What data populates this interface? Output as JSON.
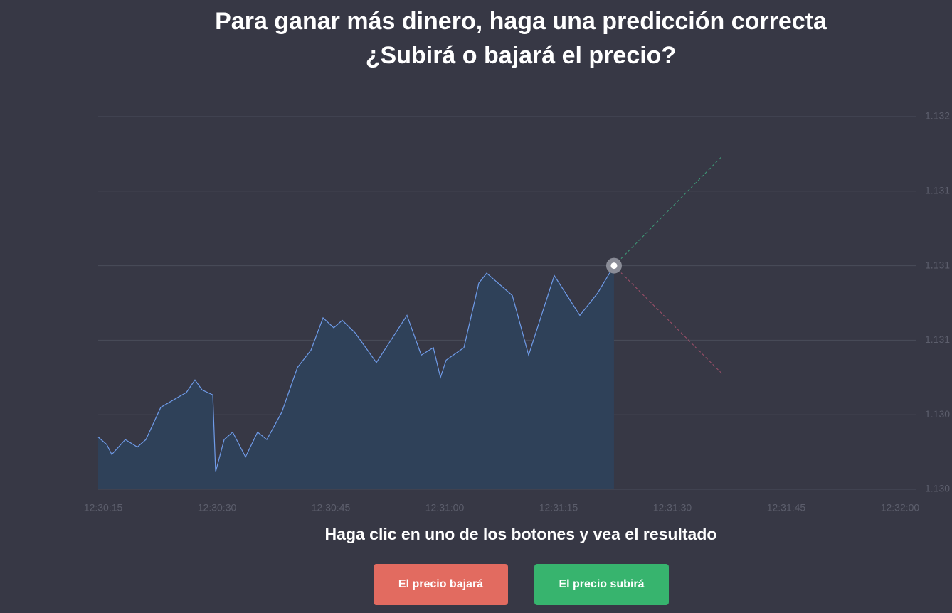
{
  "header": {
    "title": "Para ganar más dinero, haga una predicción correcta",
    "subtitle": "¿Subirá o bajará el precio?"
  },
  "chart_data": {
    "type": "area",
    "x": [
      14.34,
      15.47,
      16.13,
      17.91,
      19.5,
      20.63,
      22.59,
      25.97,
      27.09,
      28.03,
      29.44,
      29.81,
      30.94,
      32.06,
      33.75,
      35.34,
      36.56,
      38.53,
      40.59,
      42.38,
      43.97,
      45.38,
      46.5,
      48.19,
      51,
      55.03,
      56.91,
      58.5,
      59.44,
      60.19,
      62.53,
      64.5,
      65.53,
      68.91,
      71.06,
      74.44,
      77.81,
      80.16,
      82.31
    ],
    "values": [
      1.13021,
      1.13018,
      1.13014,
      1.1302,
      1.13017,
      1.1302,
      1.13033,
      1.13039,
      1.13044,
      1.1304,
      1.13038,
      1.13007,
      1.1302,
      1.13023,
      1.13013,
      1.13023,
      1.1302,
      1.13031,
      1.13049,
      1.13056,
      1.13069,
      1.13065,
      1.13068,
      1.13063,
      1.13051,
      1.1307,
      1.13054,
      1.13057,
      1.13045,
      1.13052,
      1.13057,
      1.13083,
      1.13087,
      1.13078,
      1.13054,
      1.13086,
      1.1307,
      1.13079,
      1.1309
    ],
    "color": "#6f9be8",
    "xlim": [
      14.34,
      122.16
    ],
    "xticks": [
      {
        "value": 15,
        "label": "12:30:15"
      },
      {
        "value": 30,
        "label": "12:30:30"
      },
      {
        "value": 45,
        "label": "12:30:45"
      },
      {
        "value": 60,
        "label": "12:31:00"
      },
      {
        "value": 75,
        "label": "12:31:15"
      },
      {
        "value": 90,
        "label": "12:31:30"
      },
      {
        "value": 105,
        "label": "12:31:45"
      },
      {
        "value": 120,
        "label": "12:32:00"
      }
    ],
    "ylim": [
      1.13,
      1.1315
    ],
    "yticks": [
      {
        "value": 1.13,
        "label": "1.130"
      },
      {
        "value": 1.1303,
        "label": "1.130"
      },
      {
        "value": 1.1306,
        "label": "1.131"
      },
      {
        "value": 1.1309,
        "label": "1.131"
      },
      {
        "value": 1.1312,
        "label": "1.131"
      },
      {
        "value": 1.1315,
        "label": "1.132"
      }
    ],
    "grid": true
  },
  "footer": {
    "instruction": "Haga clic en uno de los botones y vea el resultado",
    "buttons": [
      {
        "label": "El precio bajará",
        "color": "#e26b60"
      },
      {
        "label": "El precio subirá",
        "color": "#37b46e"
      }
    ]
  }
}
